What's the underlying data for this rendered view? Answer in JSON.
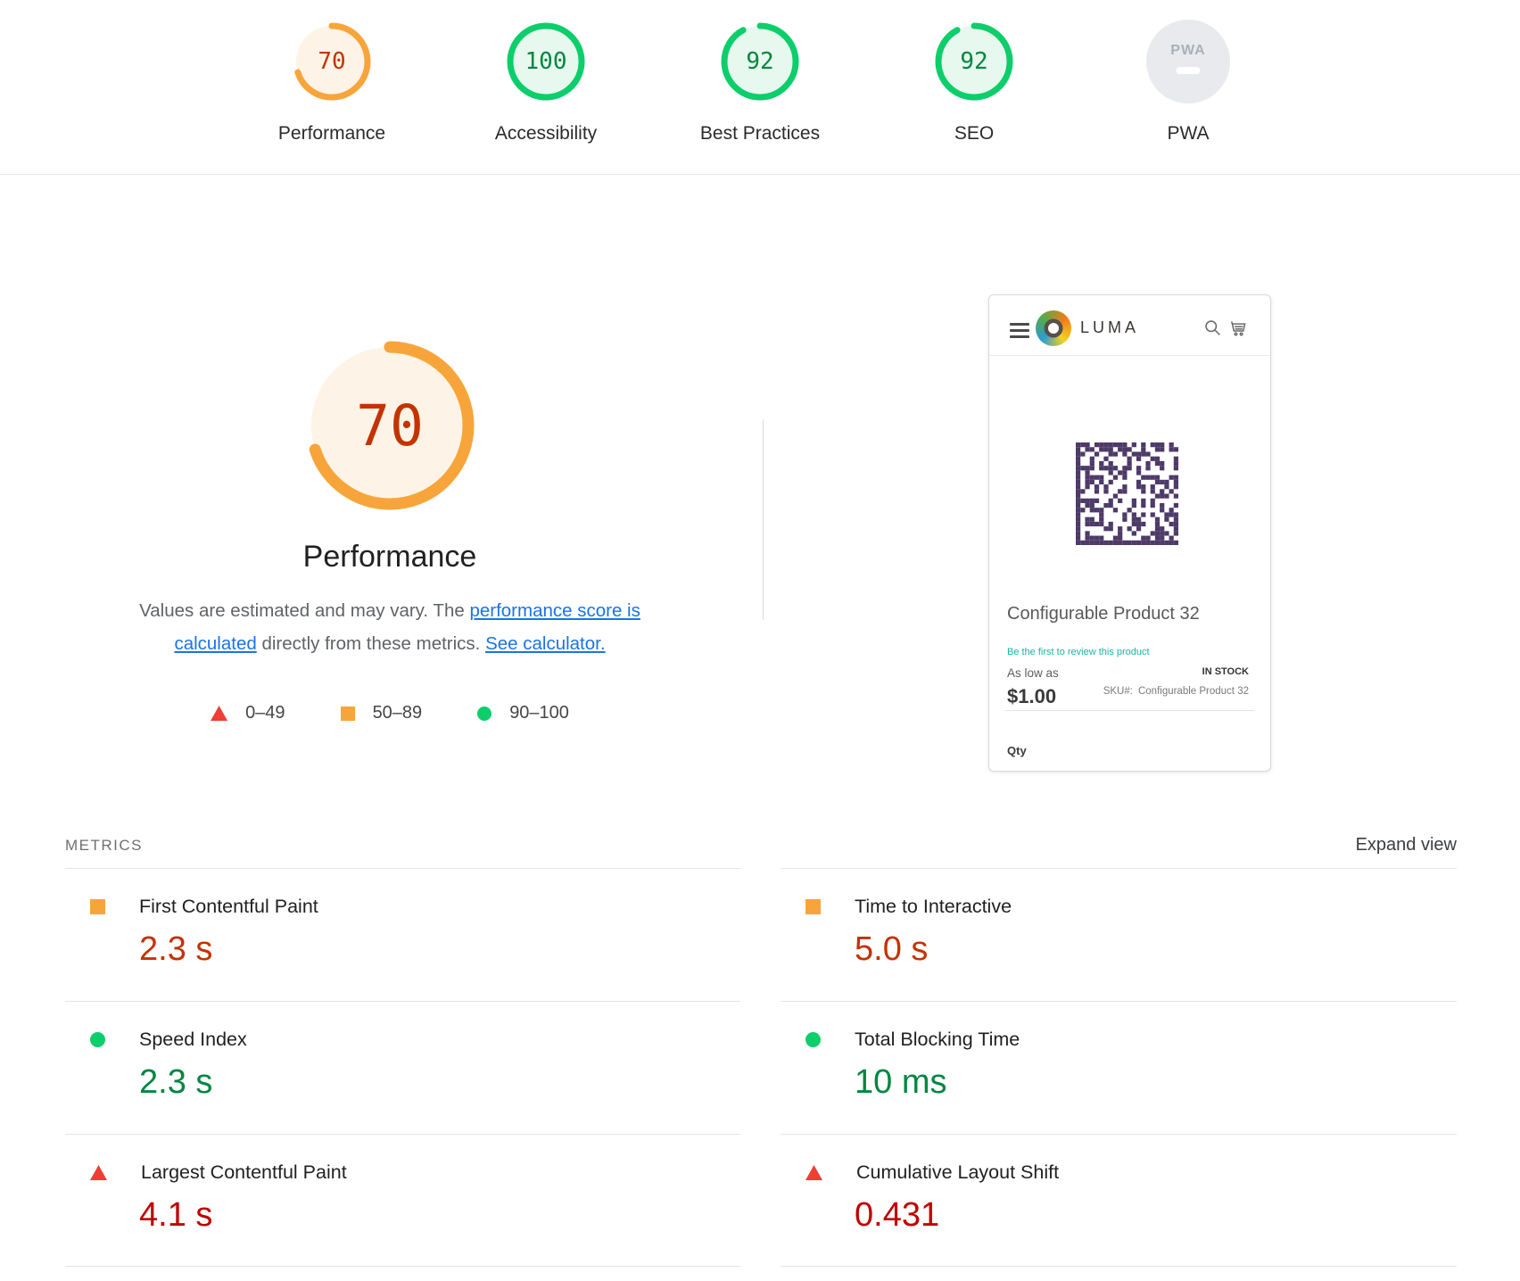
{
  "colors": {
    "pass": "#0cce6b",
    "pass-bg": "#e7f8ee",
    "pass-text": "#018642",
    "average": "#f7a53a",
    "average-bg": "#fdf3e6",
    "average-text": "#c33300",
    "fail": "#ef3e36",
    "fail-text": "#c00000",
    "link": "#1a73e8",
    "qr": "#4d3a68"
  },
  "top_gauges": [
    {
      "label": "Performance",
      "score": "70",
      "rating": "average"
    },
    {
      "label": "Accessibility",
      "score": "100",
      "rating": "pass"
    },
    {
      "label": "Best Practices",
      "score": "92",
      "rating": "pass"
    },
    {
      "label": "SEO",
      "score": "92",
      "rating": "pass"
    },
    {
      "label": "PWA",
      "badge": "PWA",
      "rating": "na"
    }
  ],
  "performance_section": {
    "score": "70",
    "rating": "average",
    "title": "Performance",
    "description_part1": "Values are estimated and may vary. The ",
    "link1": "performance score is calculated",
    "description_part2": " directly from these metrics. ",
    "link2": "See calculator.",
    "legend": [
      {
        "range": "0–49",
        "shape": "triangle"
      },
      {
        "range": "50–89",
        "shape": "square"
      },
      {
        "range": "90–100",
        "shape": "circle"
      }
    ]
  },
  "screenshot_card": {
    "brand": "LUMA",
    "product_title": "Configurable Product 32",
    "review_link": "Be the first to review this product",
    "price_prefix": "As low as",
    "price": "$1.00",
    "stock_status": "IN STOCK",
    "sku_label": "SKU#:",
    "sku_value": "Configurable Product 32",
    "qty_label": "Qty"
  },
  "metrics": {
    "heading": "METRICS",
    "expand_label": "Expand view",
    "items": [
      {
        "name": "First Contentful Paint",
        "value": "2.3 s",
        "rating": "average"
      },
      {
        "name": "Time to Interactive",
        "value": "5.0 s",
        "rating": "average"
      },
      {
        "name": "Speed Index",
        "value": "2.3 s",
        "rating": "pass"
      },
      {
        "name": "Total Blocking Time",
        "value": "10 ms",
        "rating": "pass"
      },
      {
        "name": "Largest Contentful Paint",
        "value": "4.1 s",
        "rating": "fail"
      },
      {
        "name": "Cumulative Layout Shift",
        "value": "0.431",
        "rating": "fail"
      }
    ]
  }
}
